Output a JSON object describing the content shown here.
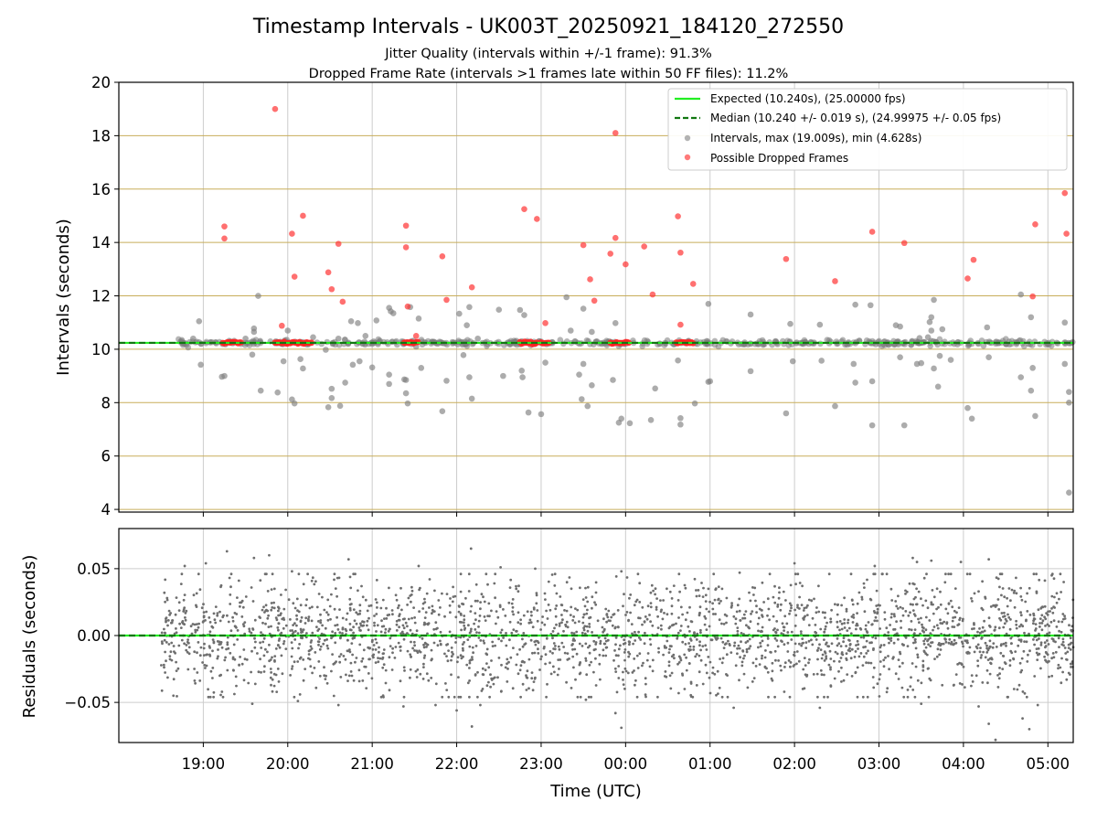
{
  "chart_data": [
    {
      "type": "scatter",
      "title": "Timestamp Intervals - UK003T_20250921_184120_272550",
      "subtitle_lines": [
        "Jitter Quality (intervals within +/-1 frame): 91.3%",
        "Dropped Frame Rate (intervals >1 frames late within 50 FF files): 11.2%"
      ],
      "xlabel": "",
      "ylabel": "Intervals (seconds)",
      "x_units": "hours since 18:00 UTC (ticks at whole hours, labels wrap past 24:00)",
      "xlim": [
        18.0,
        29.3
      ],
      "ylim": [
        3.9,
        20
      ],
      "y_ticks": [
        4,
        6,
        8,
        10,
        12,
        14,
        16,
        18,
        20
      ],
      "y_tick_labels": [
        "4",
        "6",
        "8",
        "10",
        "12",
        "14",
        "16",
        "18",
        "20"
      ],
      "grid": true,
      "horizontal_grid_color": "#c8ad5a",
      "legend": {
        "position": "upper-right",
        "entries": [
          {
            "label": "Expected (10.240s), (25.00000 fps)",
            "kind": "line-solid",
            "color": "#22ee22"
          },
          {
            "label": "Median (10.240 +/- 0.019 s), (24.99975 +/- 0.05 fps)",
            "kind": "line-dashed",
            "color": "#117711"
          },
          {
            "label": "Intervals, max (19.009s), min (4.628s)",
            "kind": "marker",
            "color": "#808080"
          },
          {
            "label": "Possible Dropped Frames",
            "kind": "marker",
            "color": "#ff3333"
          }
        ]
      },
      "series": [
        {
          "name": "Expected",
          "kind": "hline",
          "y": 10.24,
          "color": "#22ee22"
        },
        {
          "name": "Median",
          "kind": "hline",
          "y": 10.24,
          "color": "#117711"
        },
        {
          "name": "Intervals (off-baseline)",
          "color": "#808080",
          "points": [
            [
              18.95,
              11.05
            ],
            [
              18.88,
              10.4
            ],
            [
              18.97,
              9.42
            ],
            [
              19.25,
              9.0
            ],
            [
              19.22,
              8.97
            ],
            [
              19.5,
              10.4
            ],
            [
              19.58,
              9.8
            ],
            [
              19.6,
              10.78
            ],
            [
              19.6,
              10.65
            ],
            [
              19.65,
              12.0
            ],
            [
              19.68,
              8.45
            ],
            [
              19.88,
              8.38
            ],
            [
              19.95,
              9.55
            ],
            [
              20.0,
              10.7
            ],
            [
              20.05,
              8.12
            ],
            [
              20.08,
              7.97
            ],
            [
              20.15,
              9.63
            ],
            [
              20.18,
              9.28
            ],
            [
              20.3,
              10.45
            ],
            [
              20.45,
              9.98
            ],
            [
              20.48,
              7.83
            ],
            [
              20.52,
              8.52
            ],
            [
              20.52,
              8.17
            ],
            [
              20.6,
              10.4
            ],
            [
              20.62,
              7.88
            ],
            [
              20.68,
              8.75
            ],
            [
              20.75,
              11.05
            ],
            [
              20.77,
              9.42
            ],
            [
              20.83,
              10.98
            ],
            [
              20.85,
              9.55
            ],
            [
              20.92,
              10.5
            ],
            [
              21.0,
              9.32
            ],
            [
              21.05,
              11.08
            ],
            [
              21.2,
              11.55
            ],
            [
              21.2,
              9.05
            ],
            [
              21.2,
              8.7
            ],
            [
              21.22,
              11.42
            ],
            [
              21.25,
              11.35
            ],
            [
              21.38,
              8.87
            ],
            [
              21.4,
              8.85
            ],
            [
              21.4,
              8.35
            ],
            [
              21.42,
              7.97
            ],
            [
              21.45,
              11.58
            ],
            [
              21.52,
              10.1
            ],
            [
              21.55,
              11.15
            ],
            [
              21.58,
              9.3
            ],
            [
              21.83,
              7.68
            ],
            [
              21.88,
              8.82
            ],
            [
              22.03,
              11.33
            ],
            [
              22.08,
              9.78
            ],
            [
              22.12,
              10.9
            ],
            [
              22.15,
              11.58
            ],
            [
              22.15,
              8.95
            ],
            [
              22.18,
              8.15
            ],
            [
              22.25,
              10.4
            ],
            [
              22.5,
              11.48
            ],
            [
              22.55,
              9.0
            ],
            [
              22.75,
              11.47
            ],
            [
              22.77,
              10.3
            ],
            [
              22.77,
              9.2
            ],
            [
              22.78,
              8.95
            ],
            [
              22.8,
              11.28
            ],
            [
              22.85,
              7.63
            ],
            [
              23.0,
              7.57
            ],
            [
              23.05,
              9.5
            ],
            [
              23.3,
              11.95
            ],
            [
              23.35,
              10.7
            ],
            [
              23.45,
              9.05
            ],
            [
              23.48,
              8.13
            ],
            [
              23.5,
              9.45
            ],
            [
              23.5,
              11.52
            ],
            [
              23.55,
              7.87
            ],
            [
              23.6,
              8.65
            ],
            [
              23.6,
              10.65
            ],
            [
              23.85,
              8.85
            ],
            [
              23.88,
              10.98
            ],
            [
              23.92,
              7.25
            ],
            [
              23.95,
              7.4
            ],
            [
              24.05,
              7.23
            ],
            [
              24.3,
              7.35
            ],
            [
              24.35,
              8.53
            ],
            [
              24.62,
              9.58
            ],
            [
              24.65,
              7.42
            ],
            [
              24.65,
              7.18
            ],
            [
              24.82,
              7.97
            ],
            [
              24.98,
              11.7
            ],
            [
              24.98,
              8.78
            ],
            [
              25.0,
              8.8
            ],
            [
              25.48,
              11.3
            ],
            [
              25.48,
              9.18
            ],
            [
              25.9,
              7.6
            ],
            [
              25.95,
              10.95
            ],
            [
              25.98,
              9.55
            ],
            [
              26.3,
              10.92
            ],
            [
              26.32,
              9.57
            ],
            [
              26.48,
              7.87
            ],
            [
              26.7,
              9.45
            ],
            [
              26.72,
              11.67
            ],
            [
              26.72,
              8.75
            ],
            [
              26.9,
              11.65
            ],
            [
              26.92,
              8.8
            ],
            [
              26.92,
              7.15
            ],
            [
              27.2,
              10.9
            ],
            [
              27.25,
              10.85
            ],
            [
              27.25,
              9.7
            ],
            [
              27.3,
              7.15
            ],
            [
              27.45,
              9.45
            ],
            [
              27.48,
              10.42
            ],
            [
              27.5,
              9.48
            ],
            [
              27.58,
              10.45
            ],
            [
              27.6,
              11.02
            ],
            [
              27.62,
              10.7
            ],
            [
              27.62,
              11.2
            ],
            [
              27.65,
              9.28
            ],
            [
              27.65,
              11.85
            ],
            [
              27.7,
              8.6
            ],
            [
              27.72,
              9.75
            ],
            [
              27.75,
              10.75
            ],
            [
              27.85,
              9.6
            ],
            [
              28.05,
              7.8
            ],
            [
              28.1,
              7.4
            ],
            [
              28.28,
              10.82
            ],
            [
              28.3,
              9.7
            ],
            [
              28.68,
              12.05
            ],
            [
              28.68,
              8.95
            ],
            [
              28.8,
              11.2
            ],
            [
              28.8,
              8.45
            ],
            [
              28.82,
              9.3
            ],
            [
              28.85,
              7.5
            ],
            [
              29.2,
              11.0
            ],
            [
              29.2,
              9.45
            ],
            [
              29.25,
              8.4
            ],
            [
              29.25,
              8.0
            ],
            [
              29.25,
              4.63
            ]
          ]
        },
        {
          "name": "Possible Dropped Frames",
          "color": "#ff3333",
          "points": [
            [
              19.25,
              14.6
            ],
            [
              19.25,
              14.15
            ],
            [
              19.85,
              19.0
            ],
            [
              19.93,
              10.88
            ],
            [
              20.05,
              14.33
            ],
            [
              20.08,
              12.72
            ],
            [
              20.18,
              15.0
            ],
            [
              20.48,
              12.88
            ],
            [
              20.52,
              12.25
            ],
            [
              20.6,
              13.95
            ],
            [
              20.65,
              11.78
            ],
            [
              21.4,
              14.63
            ],
            [
              21.4,
              13.82
            ],
            [
              21.42,
              11.6
            ],
            [
              21.52,
              10.5
            ],
            [
              21.83,
              13.48
            ],
            [
              21.88,
              11.85
            ],
            [
              22.18,
              12.32
            ],
            [
              22.8,
              15.25
            ],
            [
              22.95,
              14.88
            ],
            [
              23.05,
              10.98
            ],
            [
              23.5,
              13.9
            ],
            [
              23.58,
              12.62
            ],
            [
              23.63,
              11.82
            ],
            [
              23.82,
              13.58
            ],
            [
              23.88,
              14.17
            ],
            [
              23.88,
              18.1
            ],
            [
              24.0,
              13.18
            ],
            [
              24.22,
              13.85
            ],
            [
              24.32,
              12.05
            ],
            [
              24.62,
              14.98
            ],
            [
              24.65,
              13.62
            ],
            [
              24.65,
              10.92
            ],
            [
              24.8,
              12.45
            ],
            [
              25.9,
              13.38
            ],
            [
              26.48,
              12.55
            ],
            [
              26.92,
              14.4
            ],
            [
              27.3,
              13.98
            ],
            [
              28.05,
              12.65
            ],
            [
              28.12,
              13.35
            ],
            [
              28.82,
              11.98
            ],
            [
              28.85,
              14.68
            ],
            [
              29.2,
              15.85
            ],
            [
              29.22,
              14.33
            ]
          ]
        },
        {
          "name": "Dropped frame clusters on baseline",
          "color": "#ff2222",
          "y": 10.24,
          "x_ranges": [
            [
              19.23,
              19.45
            ],
            [
              19.85,
              20.3
            ],
            [
              21.38,
              21.55
            ],
            [
              22.75,
              22.95
            ],
            [
              23.0,
              23.1
            ],
            [
              23.82,
              24.05
            ],
            [
              24.6,
              24.8
            ]
          ]
        }
      ]
    },
    {
      "type": "scatter",
      "title": "",
      "xlabel": "Time (UTC)",
      "ylabel": "Residuals (seconds)",
      "xlim": [
        18.0,
        29.3
      ],
      "ylim": [
        -0.08,
        0.08
      ],
      "x_ticks": [
        19,
        20,
        21,
        22,
        23,
        24,
        25,
        26,
        27,
        28,
        29
      ],
      "x_tick_labels": [
        "19:00",
        "20:00",
        "21:00",
        "22:00",
        "23:00",
        "00:00",
        "01:00",
        "02:00",
        "03:00",
        "04:00",
        "05:00"
      ],
      "y_ticks": [
        -0.05,
        0.0,
        0.05
      ],
      "y_tick_labels": [
        "−0.05",
        "0.00",
        "0.05"
      ],
      "grid": true,
      "series": [
        {
          "name": "Zero line",
          "kind": "hline",
          "y": 0.0,
          "color": "#22ee22"
        },
        {
          "name": "Zero median",
          "kind": "hline",
          "y": 0.0,
          "color": "#117711"
        },
        {
          "name": "Residuals",
          "color": "#6e6e6e",
          "x_range": [
            18.5,
            29.3
          ],
          "count": 2600,
          "approx_std": 0.021,
          "outlier_points": [
            [
              18.78,
              0.052
            ],
            [
              19.03,
              0.054
            ],
            [
              19.28,
              0.063
            ],
            [
              19.6,
              0.058
            ],
            [
              19.78,
              0.06
            ],
            [
              20.05,
              0.048
            ],
            [
              20.72,
              0.057
            ],
            [
              21.55,
              0.052
            ],
            [
              22.17,
              0.065
            ],
            [
              22.52,
              0.051
            ],
            [
              22.93,
              0.05
            ],
            [
              23.95,
              0.048
            ],
            [
              25.35,
              0.047
            ],
            [
              26.0,
              0.054
            ],
            [
              26.95,
              0.052
            ],
            [
              27.4,
              0.058
            ],
            [
              27.45,
              0.055
            ],
            [
              27.62,
              0.056
            ],
            [
              27.97,
              0.055
            ],
            [
              28.3,
              0.057
            ],
            [
              19.58,
              -0.051
            ],
            [
              20.12,
              -0.049
            ],
            [
              20.6,
              -0.052
            ],
            [
              21.37,
              -0.053
            ],
            [
              21.75,
              -0.052
            ],
            [
              22.0,
              -0.056
            ],
            [
              22.18,
              -0.068
            ],
            [
              22.28,
              -0.052
            ],
            [
              23.53,
              -0.048
            ],
            [
              23.88,
              -0.058
            ],
            [
              23.95,
              -0.069
            ],
            [
              25.28,
              -0.054
            ],
            [
              26.3,
              -0.054
            ],
            [
              27.5,
              -0.051
            ],
            [
              28.18,
              -0.053
            ],
            [
              28.3,
              -0.066
            ],
            [
              28.38,
              -0.078
            ],
            [
              28.7,
              -0.062
            ],
            [
              28.78,
              -0.07
            ],
            [
              28.88,
              -0.052
            ]
          ]
        }
      ]
    }
  ]
}
